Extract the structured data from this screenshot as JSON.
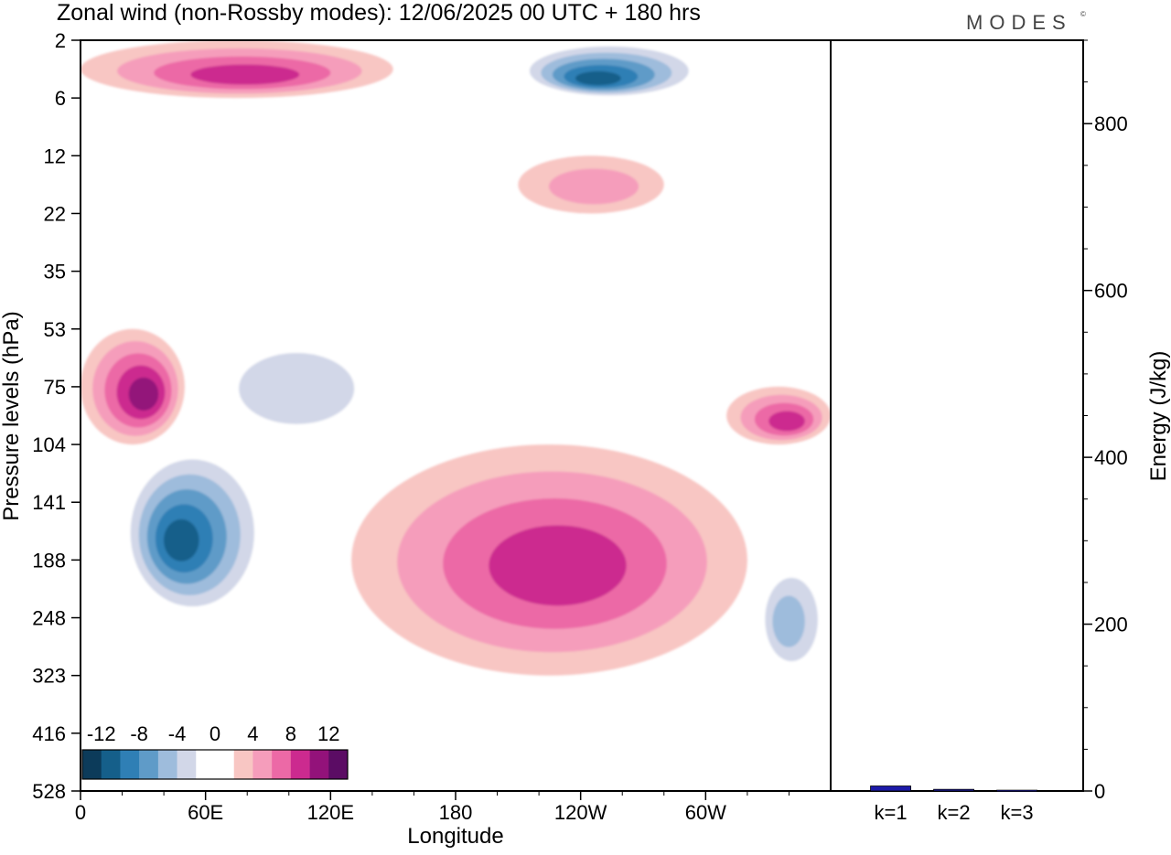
{
  "title": "Zonal wind (non-Rossby modes):  12/06/2025  00 UTC  + 180 hrs",
  "brand": {
    "name": "MODES",
    "mark": "©"
  },
  "chart_data": [
    {
      "type": "heatmap",
      "field": "zonal wind, non-Rossby modes",
      "xlabel": "Longitude",
      "ylabel": "Pressure levels (hPa)",
      "x_ticks": [
        "0",
        "60E",
        "120E",
        "180",
        "120W",
        "60W"
      ],
      "x_tick_degrees": [
        0,
        60,
        120,
        180,
        240,
        300
      ],
      "xlim": [
        0,
        360
      ],
      "y_ticks": [
        "2",
        "6",
        "12",
        "22",
        "35",
        "53",
        "75",
        "104",
        "141",
        "188",
        "248",
        "323",
        "416",
        "528"
      ],
      "colorbar": {
        "tick_labels": [
          "-12",
          "-8",
          "-4",
          "0",
          "4",
          "8",
          "12"
        ],
        "levels": [
          -14,
          -12,
          -10,
          -8,
          -6,
          -4,
          -2,
          2,
          4,
          6,
          8,
          10,
          12,
          14
        ],
        "colors": [
          "#0c3b5a",
          "#155f8a",
          "#2f7fb5",
          "#5f9bc8",
          "#9ebcdc",
          "#d2d7e8",
          "#ffffff",
          "#ffffff",
          "#f8c6c3",
          "#f59dbb",
          "#ec69a6",
          "#cc2a8f",
          "#93127a",
          "#5b0c64"
        ]
      },
      "features": [
        {
          "sign": "negative",
          "lon_range": [
            20,
            90
          ],
          "level_range": [
            "104",
            "248"
          ],
          "peak": -14
        },
        {
          "sign": "negative",
          "lon_range": [
            60,
            150
          ],
          "level_range": [
            "53",
            "104"
          ],
          "peak": -6
        },
        {
          "sign": "positive",
          "lon_range": [
            0,
            50
          ],
          "level_range": [
            "53",
            "104"
          ],
          "peak": 12
        },
        {
          "sign": "positive",
          "lon_range": [
            130,
            320
          ],
          "level_range": [
            "104",
            "323"
          ],
          "peak": 10
        },
        {
          "sign": "positive",
          "lon_range": [
            310,
            360
          ],
          "level_range": [
            "75",
            "104"
          ],
          "peak": 10
        },
        {
          "sign": "negative",
          "lon_range": [
            325,
            360
          ],
          "level_range": [
            "188",
            "323"
          ],
          "peak": -8
        },
        {
          "sign": "negative",
          "lon_range": [
            210,
            300
          ],
          "level_range": [
            "2",
            "6"
          ],
          "peak": -14
        },
        {
          "sign": "positive",
          "lon_range": [
            0,
            150
          ],
          "level_range": [
            "2",
            "6"
          ],
          "peak": 10
        },
        {
          "sign": "positive",
          "lon_range": [
            210,
            280
          ],
          "level_range": [
            "12",
            "22"
          ],
          "peak": 6
        }
      ]
    },
    {
      "type": "bar",
      "ylabel": "Energy (J/kg)",
      "categories": [
        "k=1",
        "k=2",
        "k=3"
      ],
      "values": [
        6,
        2,
        1
      ],
      "ylim": [
        0,
        900
      ],
      "y_ticks": [
        0,
        200,
        400,
        600,
        800
      ],
      "bar_color": "#1c1aa8"
    }
  ]
}
